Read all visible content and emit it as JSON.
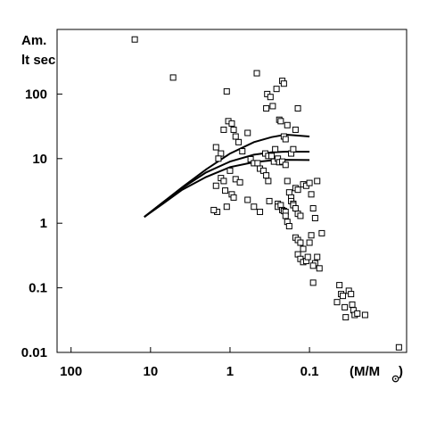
{
  "chart_data": {
    "type": "scatter",
    "title": "",
    "ylabel_lines": [
      "Am.",
      "lt sec"
    ],
    "xlabel_main": "(M/M",
    "xlabel_sub": "⊙",
    "xlabel_close": ")",
    "x_scale": "log",
    "x_reversed": true,
    "y_scale": "log",
    "xlim": [
      150,
      0.006
    ],
    "ylim": [
      0.01,
      1000
    ],
    "x_ticks": [
      {
        "value": 100,
        "label": "100"
      },
      {
        "value": 10,
        "label": "10"
      },
      {
        "value": 1,
        "label": "1"
      },
      {
        "value": 0.1,
        "label": "0.1"
      }
    ],
    "y_ticks": [
      {
        "value": 0.01,
        "label": "0.01"
      },
      {
        "value": 0.1,
        "label": "0.1"
      },
      {
        "value": 1,
        "label": "1"
      },
      {
        "value": 10,
        "label": "10"
      },
      {
        "value": 100,
        "label": "100"
      }
    ],
    "grid": false,
    "legend": "none",
    "colors": {
      "marker": "#000000",
      "line": "#000000",
      "background": "#ffffff"
    },
    "series": [
      {
        "kind": "points",
        "marker": "open-square",
        "points": [
          [
            15.8,
            700
          ],
          [
            5.2,
            180
          ],
          [
            0.46,
            210
          ],
          [
            0.34,
            100
          ],
          [
            0.31,
            90
          ],
          [
            0.29,
            65
          ],
          [
            0.26,
            120
          ],
          [
            0.24,
            40
          ],
          [
            0.22,
            160
          ],
          [
            0.21,
            145
          ],
          [
            0.23,
            38
          ],
          [
            0.35,
            60
          ],
          [
            1.1,
            110
          ],
          [
            1.05,
            38
          ],
          [
            0.95,
            35
          ],
          [
            0.9,
            28
          ],
          [
            1.2,
            28
          ],
          [
            0.85,
            22
          ],
          [
            0.6,
            25
          ],
          [
            0.78,
            18
          ],
          [
            1.5,
            15
          ],
          [
            1.3,
            12
          ],
          [
            1.4,
            10
          ],
          [
            0.7,
            13
          ],
          [
            0.55,
            9.8
          ],
          [
            0.5,
            8.5
          ],
          [
            0.45,
            8.5
          ],
          [
            0.42,
            7
          ],
          [
            0.38,
            6.5
          ],
          [
            0.36,
            12
          ],
          [
            0.33,
            11
          ],
          [
            0.3,
            11
          ],
          [
            0.28,
            9
          ],
          [
            0.27,
            14
          ],
          [
            0.25,
            10
          ],
          [
            0.24,
            8.8
          ],
          [
            0.22,
            9
          ],
          [
            0.2,
            8
          ],
          [
            0.21,
            22
          ],
          [
            0.2,
            20
          ],
          [
            0.19,
            33
          ],
          [
            0.17,
            12
          ],
          [
            0.16,
            14
          ],
          [
            0.15,
            28
          ],
          [
            0.14,
            60
          ],
          [
            1.3,
            5
          ],
          [
            1.2,
            4.5
          ],
          [
            1.15,
            3.2
          ],
          [
            1.0,
            6.5
          ],
          [
            0.95,
            2.8
          ],
          [
            0.9,
            2.5
          ],
          [
            0.85,
            4.8
          ],
          [
            0.75,
            4.3
          ],
          [
            1.5,
            3.8
          ],
          [
            1.45,
            1.5
          ],
          [
            1.6,
            1.6
          ],
          [
            1.1,
            1.8
          ],
          [
            0.6,
            2.3
          ],
          [
            0.5,
            1.8
          ],
          [
            0.42,
            1.5
          ],
          [
            0.35,
            5.5
          ],
          [
            0.33,
            4.5
          ],
          [
            0.32,
            2.2
          ],
          [
            0.25,
            2
          ],
          [
            0.25,
            1.8
          ],
          [
            0.23,
            1.9
          ],
          [
            0.22,
            1.6
          ],
          [
            0.21,
            1.55
          ],
          [
            0.2,
            1.5
          ],
          [
            0.2,
            1.3
          ],
          [
            0.19,
            4.5
          ],
          [
            0.18,
            3
          ],
          [
            0.17,
            2.5
          ],
          [
            0.17,
            2.2
          ],
          [
            0.16,
            2
          ],
          [
            0.16,
            1.9
          ],
          [
            0.15,
            3.5
          ],
          [
            0.15,
            1.7
          ],
          [
            0.14,
            1.4
          ],
          [
            0.13,
            1.3
          ],
          [
            0.14,
            3.3
          ],
          [
            0.12,
            4
          ],
          [
            0.11,
            3.8
          ],
          [
            0.1,
            4.2
          ],
          [
            0.095,
            2.8
          ],
          [
            0.09,
            1.7
          ],
          [
            0.085,
            1.2
          ],
          [
            0.08,
            4.5
          ],
          [
            0.19,
            1.05
          ],
          [
            0.18,
            0.9
          ],
          [
            0.15,
            0.6
          ],
          [
            0.14,
            0.55
          ],
          [
            0.13,
            0.5
          ],
          [
            0.12,
            0.4
          ],
          [
            0.14,
            0.33
          ],
          [
            0.13,
            0.28
          ],
          [
            0.12,
            0.25
          ],
          [
            0.11,
            0.26
          ],
          [
            0.105,
            0.3
          ],
          [
            0.1,
            0.5
          ],
          [
            0.095,
            0.65
          ],
          [
            0.085,
            0.24
          ],
          [
            0.09,
            0.22
          ],
          [
            0.08,
            0.3
          ],
          [
            0.075,
            0.2
          ],
          [
            0.07,
            0.7
          ],
          [
            0.09,
            0.12
          ],
          [
            0.045,
            0.06
          ],
          [
            0.042,
            0.11
          ],
          [
            0.04,
            0.08
          ],
          [
            0.038,
            0.075
          ],
          [
            0.036,
            0.05
          ],
          [
            0.035,
            0.035
          ],
          [
            0.032,
            0.09
          ],
          [
            0.03,
            0.08
          ],
          [
            0.029,
            0.055
          ],
          [
            0.028,
            0.045
          ],
          [
            0.027,
            0.038
          ],
          [
            0.025,
            0.04
          ],
          [
            0.02,
            0.038
          ],
          [
            0.0075,
            0.012
          ]
        ]
      },
      {
        "kind": "curve",
        "points": [
          [
            12,
            1.25
          ],
          [
            7,
            2.1
          ],
          [
            4,
            3.6
          ],
          [
            2,
            6.8
          ],
          [
            1,
            12
          ],
          [
            0.5,
            18
          ],
          [
            0.3,
            21.5
          ],
          [
            0.2,
            23.5
          ],
          [
            0.1,
            22
          ]
        ]
      },
      {
        "kind": "curve",
        "points": [
          [
            12,
            1.25
          ],
          [
            7,
            2.1
          ],
          [
            4,
            3.5
          ],
          [
            2,
            6.1
          ],
          [
            1,
            9
          ],
          [
            0.5,
            11.5
          ],
          [
            0.3,
            12.5
          ],
          [
            0.2,
            12.8
          ],
          [
            0.1,
            12.8
          ]
        ]
      },
      {
        "kind": "curve",
        "points": [
          [
            12,
            1.25
          ],
          [
            7,
            2.0
          ],
          [
            4,
            3.3
          ],
          [
            2,
            5.2
          ],
          [
            1,
            7.4
          ],
          [
            0.5,
            8.8
          ],
          [
            0.3,
            9.4
          ],
          [
            0.2,
            9.6
          ],
          [
            0.1,
            9.5
          ]
        ]
      }
    ]
  }
}
